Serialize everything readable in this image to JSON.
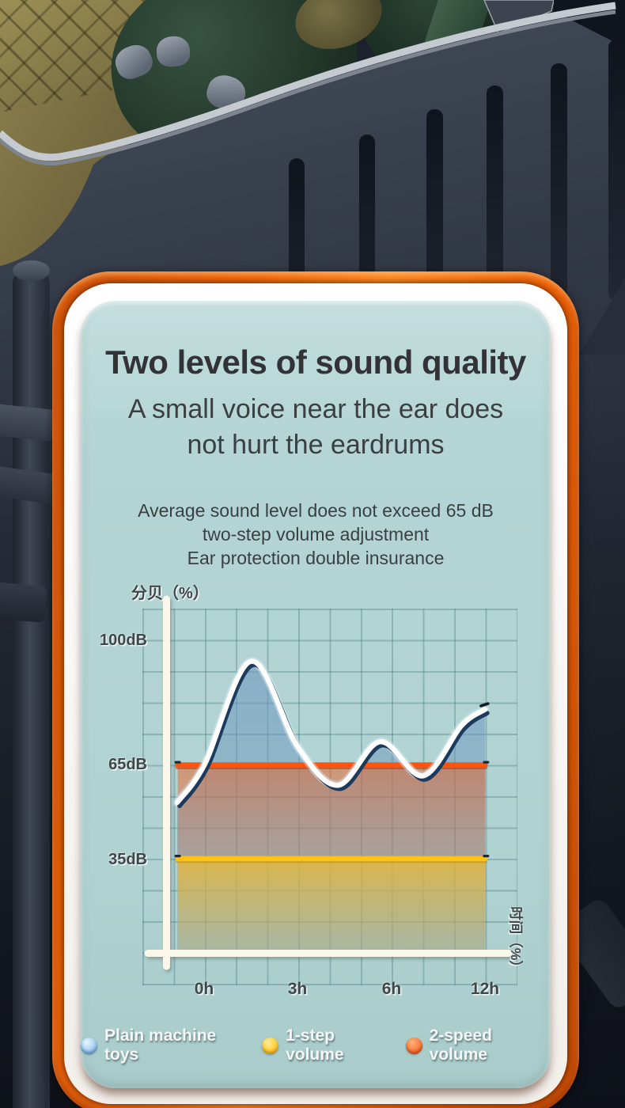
{
  "page_background": "#161b26",
  "colors": {
    "frame_orange": "#f2690b",
    "panel_teal": "#b3d5d3",
    "axis_white": "#fbf7eb",
    "grid_teal": "#3e7076",
    "curve_white": "#ffffff",
    "curve_shadow_navy": "#1b3a5c",
    "curve_fill_blue": "#6f9fc9",
    "line_65db_orange": "#ff5310",
    "line_35db_yellow": "#ffc112",
    "heading_charcoal": "#333337"
  },
  "header": {
    "title": "Two levels of sound quality",
    "subtitle_lines": [
      "A small voice near the ear does",
      "not hurt the eardrums"
    ],
    "description_lines": [
      "Average sound level does not exceed 65 dB",
      "two-step volume adjustment",
      "Ear protection double insurance"
    ]
  },
  "chart_data": {
    "type": "area",
    "title": "",
    "y_axis_label": "分贝（%）",
    "x_axis_label": "时间（%）",
    "y_ticks": [
      {
        "label": "100dB",
        "dB": 100
      },
      {
        "label": "65dB",
        "dB": 65
      },
      {
        "label": "35dB",
        "dB": 35
      }
    ],
    "x_ticks": [
      "0h",
      "3h",
      "6h",
      "12h"
    ],
    "grid": true,
    "legend_position": "bottom",
    "series": [
      {
        "name": "Plain machine toys",
        "type": "smooth_curve",
        "color": "#ffffff",
        "fill": "#6f9fc9",
        "t_scale": "x-tick index (0=0h, 1=3h, 2=6h, 3=12h)",
        "points": [
          {
            "t": -0.29,
            "dB": 53
          },
          {
            "t": 0.0,
            "dB": 65
          },
          {
            "t": 0.5,
            "dB": 94
          },
          {
            "t": 1.0,
            "dB": 70
          },
          {
            "t": 1.43,
            "dB": 58.5
          },
          {
            "t": 1.88,
            "dB": 71.5
          },
          {
            "t": 2.34,
            "dB": 61.5
          },
          {
            "t": 2.75,
            "dB": 76
          },
          {
            "t": 3.0,
            "dB": 80.5
          }
        ]
      },
      {
        "name": "1-step volume",
        "type": "horizontal_line",
        "color": "#ffc112",
        "value_dB": 35
      },
      {
        "name": "2-speed volume",
        "type": "horizontal_line",
        "color": "#ff5310",
        "value_dB": 65
      }
    ],
    "legend": [
      {
        "label": "Plain machine toys",
        "dot_color": "#a9d2ee"
      },
      {
        "label": "1-step volume",
        "dot_color": "#ffd23e"
      },
      {
        "label": "2-speed volume",
        "dot_color": "#f4703a"
      }
    ]
  }
}
